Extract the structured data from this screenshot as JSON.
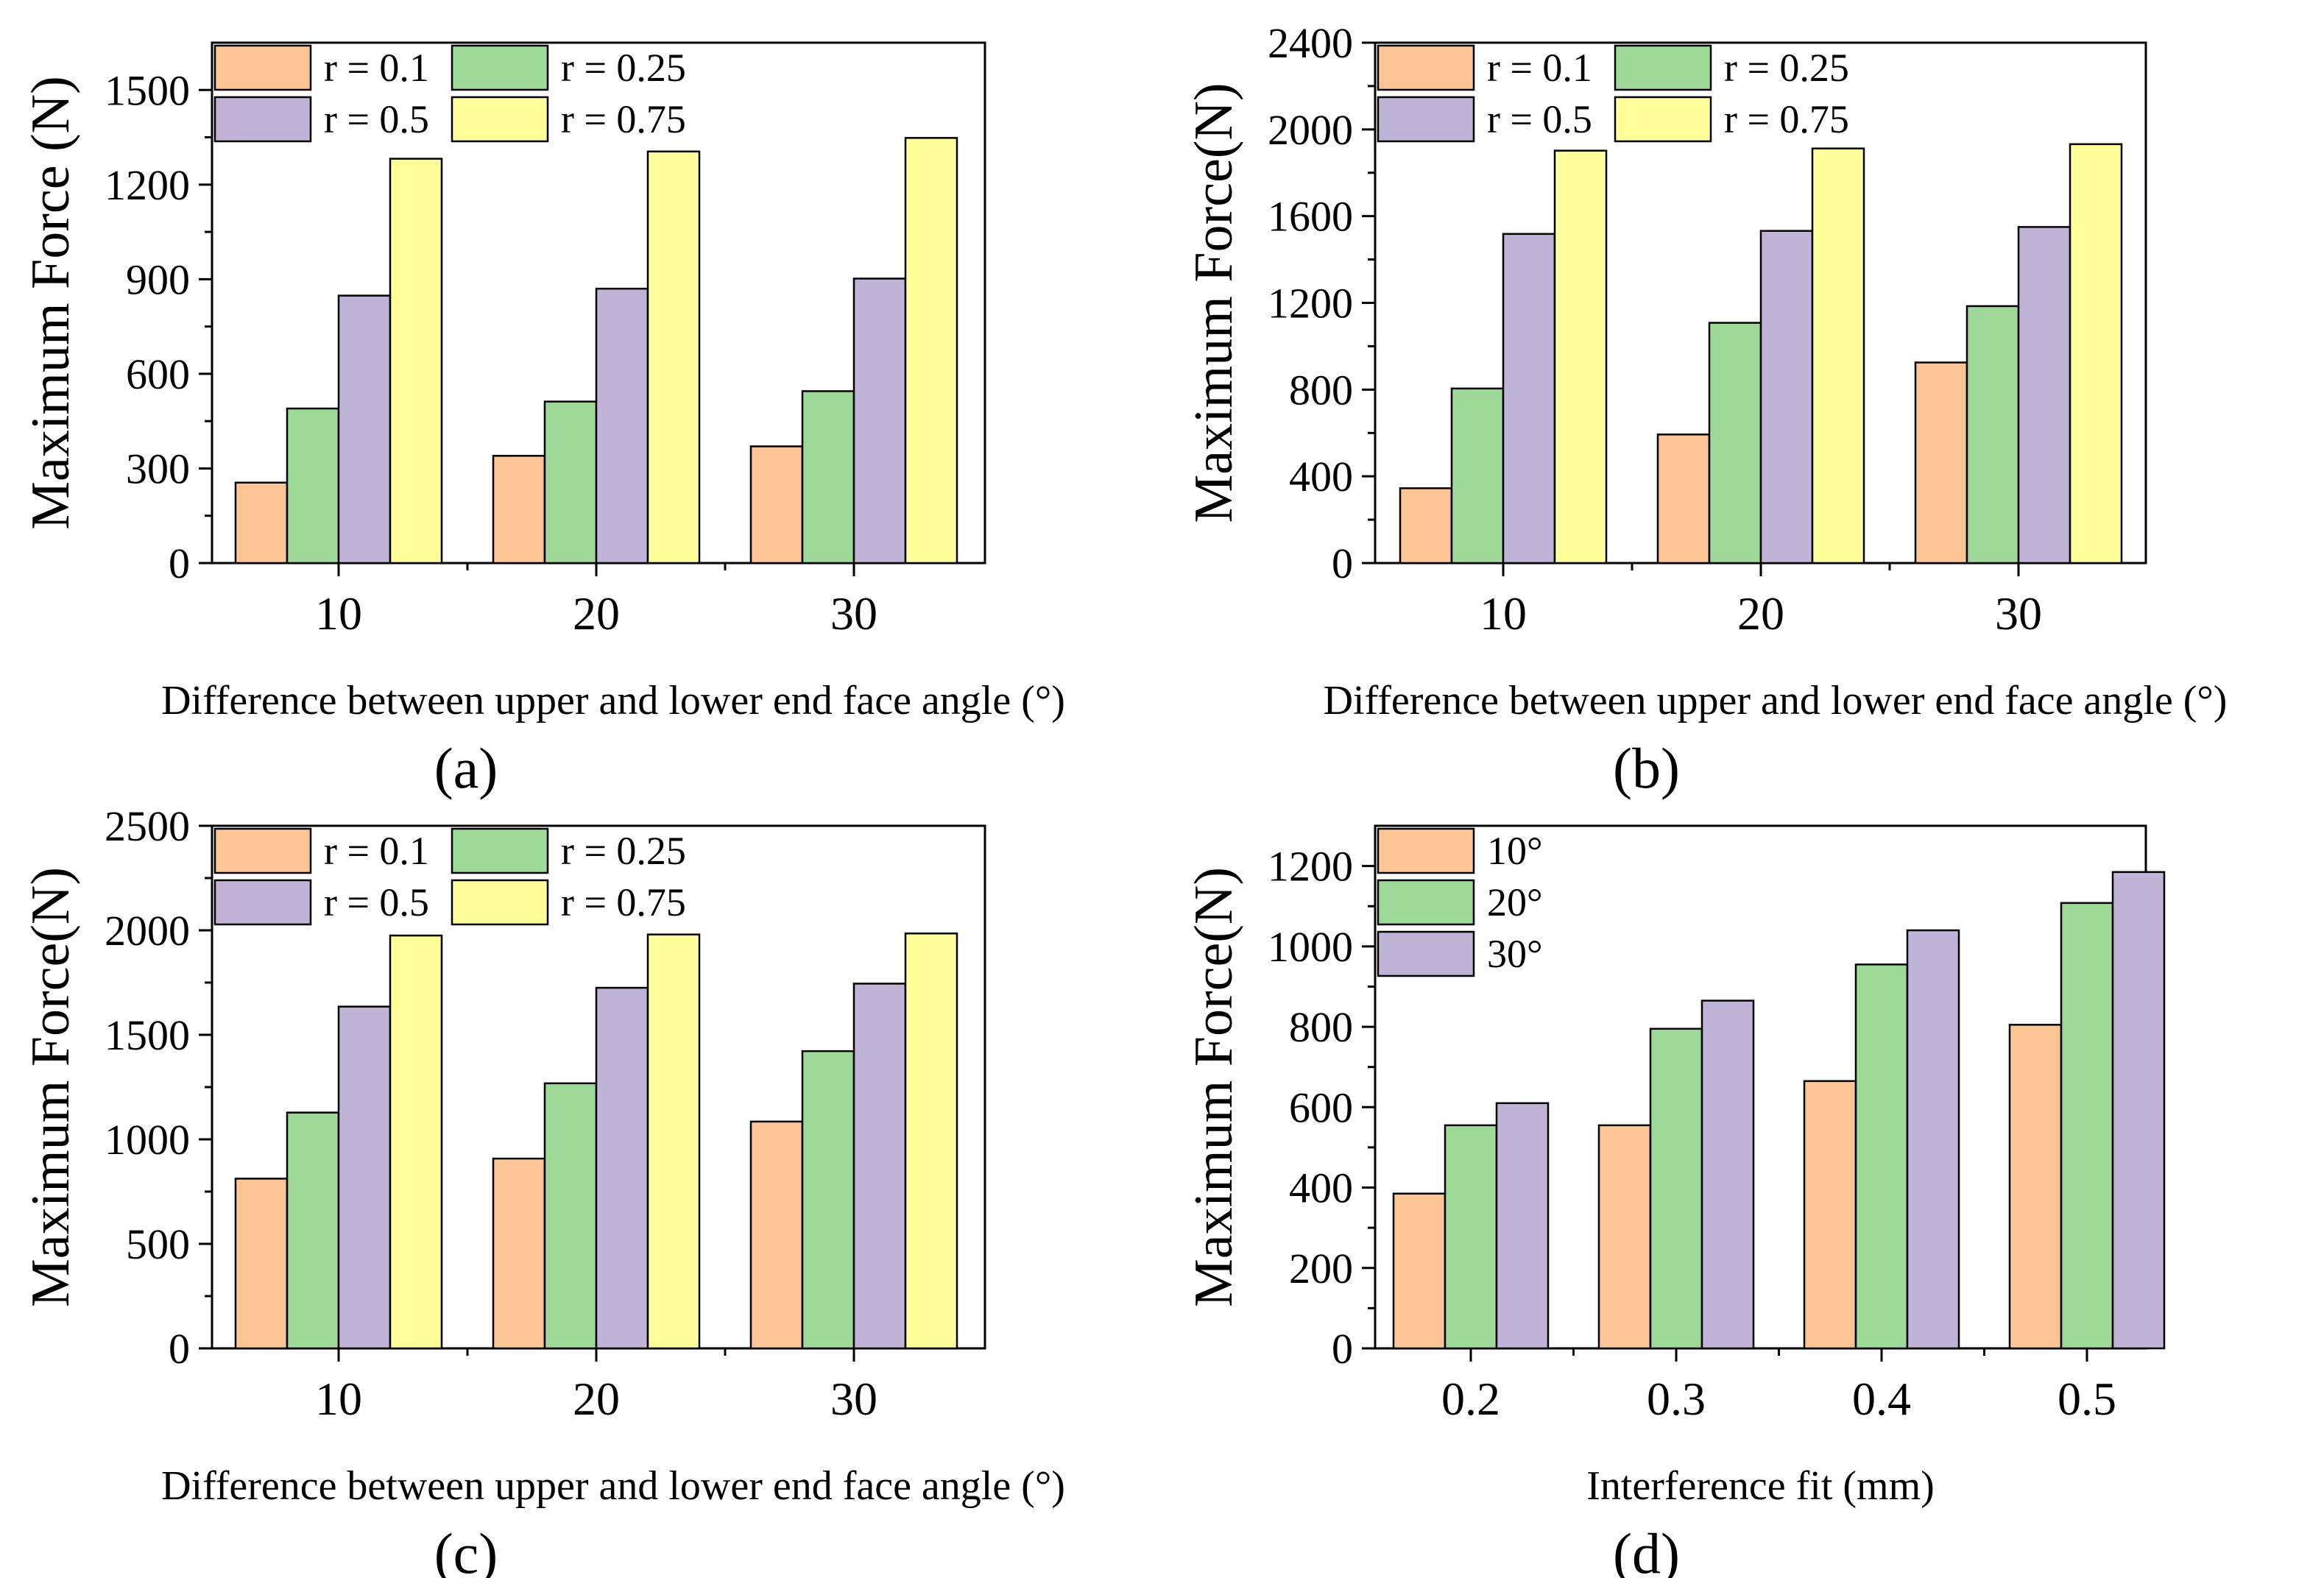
{
  "colors": {
    "orange": "#FCC593",
    "green": "#9ED99A",
    "purple": "#C1B3D8",
    "yellow": "#FFFF99"
  },
  "chart_data": [
    {
      "panel_label": "(a)",
      "type": "bar",
      "title": "",
      "xlabel": "Difference between upper and lower end face angle (°)",
      "ylabel": "Maximum Force (N)",
      "categories": [
        "10",
        "20",
        "30"
      ],
      "ylim": [
        0,
        1650
      ],
      "yticks": [
        0,
        300,
        600,
        900,
        1200,
        1500
      ],
      "ytick_labels": [
        "0",
        "300",
        "600",
        "900",
        "1200",
        "1500"
      ],
      "legend_columns": 2,
      "legend_position": "top-left",
      "series": [
        {
          "name": "r = 0.1",
          "color": "orange",
          "values": [
            255,
            340,
            370
          ]
        },
        {
          "name": "r = 0.25",
          "color": "green",
          "values": [
            490,
            512,
            545
          ]
        },
        {
          "name": "r = 0.5",
          "color": "purple",
          "values": [
            848,
            870,
            902
          ]
        },
        {
          "name": "r = 0.75",
          "color": "yellow",
          "values": [
            1282,
            1305,
            1348
          ]
        }
      ]
    },
    {
      "panel_label": "(b)",
      "type": "bar",
      "title": "",
      "xlabel": "Difference between upper and lower end face angle (°)",
      "ylabel": "Maximum Force(N)",
      "categories": [
        "10",
        "20",
        "30"
      ],
      "ylim": [
        0,
        2400
      ],
      "yticks": [
        0,
        400,
        800,
        1200,
        1600,
        2000,
        2400
      ],
      "ytick_labels": [
        "0",
        "400",
        "800",
        "1200",
        "1600",
        "2000",
        "2400"
      ],
      "legend_columns": 2,
      "legend_position": "top-left",
      "series": [
        {
          "name": "r = 0.1",
          "color": "orange",
          "values": [
            345,
            593,
            925
          ]
        },
        {
          "name": "r = 0.25",
          "color": "green",
          "values": [
            805,
            1108,
            1185
          ]
        },
        {
          "name": "r = 0.5",
          "color": "purple",
          "values": [
            1518,
            1532,
            1550
          ]
        },
        {
          "name": "r = 0.75",
          "color": "yellow",
          "values": [
            1902,
            1912,
            1932
          ]
        }
      ]
    },
    {
      "panel_label": "(c)",
      "type": "bar",
      "title": "",
      "xlabel": "Difference between upper and lower end face angle (°)",
      "ylabel": "Maximum Force(N)",
      "categories": [
        "10",
        "20",
        "30"
      ],
      "ylim": [
        0,
        2500
      ],
      "yticks": [
        0,
        500,
        1000,
        1500,
        2000,
        2500
      ],
      "ytick_labels": [
        "0",
        "500",
        "1000",
        "1500",
        "2000",
        "2500"
      ],
      "legend_columns": 2,
      "legend_position": "top-left",
      "series": [
        {
          "name": "r = 0.1",
          "color": "orange",
          "values": [
            812,
            908,
            1085
          ]
        },
        {
          "name": "r = 0.25",
          "color": "green",
          "values": [
            1128,
            1268,
            1422
          ]
        },
        {
          "name": "r = 0.5",
          "color": "purple",
          "values": [
            1635,
            1725,
            1745
          ]
        },
        {
          "name": "r = 0.75",
          "color": "yellow",
          "values": [
            1975,
            1980,
            1985
          ]
        }
      ]
    },
    {
      "panel_label": "(d)",
      "type": "bar",
      "title": "",
      "xlabel": "Interference fit (mm)",
      "ylabel": "Maximum Force(N)",
      "categories": [
        "0.2",
        "0.3",
        "0.4",
        "0.5"
      ],
      "ylim": [
        0,
        1300
      ],
      "yticks": [
        0,
        200,
        400,
        600,
        800,
        1000,
        1200
      ],
      "ytick_labels": [
        "0",
        "200",
        "400",
        "600",
        "800",
        "1000",
        "1200"
      ],
      "legend_columns": 1,
      "legend_position": "top-left",
      "series": [
        {
          "name": "10°",
          "color": "orange",
          "values": [
            385,
            555,
            665,
            805
          ]
        },
        {
          "name": "20°",
          "color": "green",
          "values": [
            555,
            795,
            955,
            1108
          ]
        },
        {
          "name": "30°",
          "color": "purple",
          "values": [
            610,
            865,
            1040,
            1185
          ]
        }
      ]
    }
  ]
}
